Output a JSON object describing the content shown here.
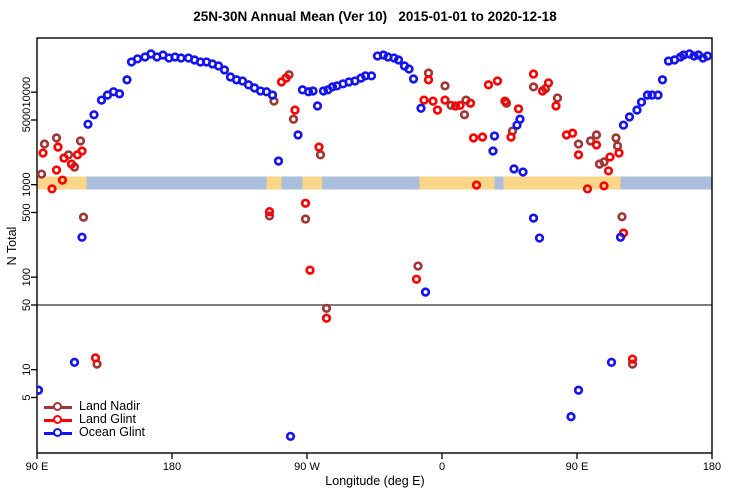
{
  "title": "25N-30N Annual Mean (Ver 10)   2015-01-01 to 2020-12-18",
  "chart_data": {
    "type": "scatter",
    "title": "25N-30N Annual Mean (Ver 10)   2015-01-01 to 2020-12-18",
    "xlabel": "Longitude (deg E)",
    "ylabel": "N Total",
    "x_axis": {
      "note": "longitude axis wraps: 90E to 180 to 90W to 0 to 90E to 180, stored unwrapped 90..540 deg",
      "range": [
        90,
        540
      ],
      "ticks": [
        {
          "lon": 90,
          "label": "90 E"
        },
        {
          "lon": 180,
          "label": "180"
        },
        {
          "lon": 270,
          "label": "90 W"
        },
        {
          "lon": 360,
          "label": "0"
        },
        {
          "lon": 450,
          "label": "90 E"
        },
        {
          "lon": 540,
          "label": "180"
        }
      ]
    },
    "y_axis": {
      "scale": "log",
      "range": [
        1,
        40000
      ],
      "ticks": [
        10000,
        5000,
        1000,
        500,
        100,
        50,
        10,
        5
      ]
    },
    "reference_line": {
      "value": 50,
      "color": "#555555"
    },
    "land_ocean_strip": {
      "at_value": 1000,
      "land_color": "#FAD689",
      "ocean_color": "#A9BFDB",
      "segments": [
        {
          "from": 90,
          "to": 123,
          "type": "land"
        },
        {
          "from": 123,
          "to": 243,
          "type": "ocean"
        },
        {
          "from": 243,
          "to": 253,
          "type": "land"
        },
        {
          "from": 253,
          "to": 267,
          "type": "ocean"
        },
        {
          "from": 267,
          "to": 280,
          "type": "land"
        },
        {
          "from": 280,
          "to": 345,
          "type": "ocean"
        },
        {
          "from": 345,
          "to": 395,
          "type": "land"
        },
        {
          "from": 395,
          "to": 401,
          "type": "ocean"
        },
        {
          "from": 401,
          "to": 479,
          "type": "land"
        },
        {
          "from": 479,
          "to": 540,
          "type": "ocean"
        }
      ]
    },
    "legend_position": "bottom-left",
    "series": [
      {
        "name": "Land Nadir",
        "color": "#A03636",
        "points": [
          [
            93,
            1300
          ],
          [
            95,
            2750
          ],
          [
            103,
            3200
          ],
          [
            111,
            2100
          ],
          [
            115,
            1550
          ],
          [
            119,
            2970
          ],
          [
            121,
            445
          ],
          [
            245,
            460
          ],
          [
            248,
            8000
          ],
          [
            258,
            15400
          ],
          [
            261,
            5100
          ],
          [
            269,
            425
          ],
          [
            279,
            2100
          ],
          [
            283,
            46
          ],
          [
            344,
            132
          ],
          [
            351,
            16100
          ],
          [
            362,
            11700
          ],
          [
            366,
            7200
          ],
          [
            375,
            5700
          ],
          [
            376,
            8200
          ],
          [
            403,
            7600
          ],
          [
            407,
            3800
          ],
          [
            421,
            11400
          ],
          [
            429,
            10900
          ],
          [
            437,
            8650
          ],
          [
            451,
            2750
          ],
          [
            459,
            2970
          ],
          [
            463,
            3450
          ],
          [
            465,
            1670
          ],
          [
            468,
            1760
          ],
          [
            476,
            3200
          ],
          [
            477,
            2620
          ],
          [
            480,
            450
          ],
          [
            487,
            11.5
          ],
          [
            130,
            11.5
          ]
        ]
      },
      {
        "name": "Land Glint",
        "color": "#FF0000",
        "points": [
          [
            94,
            2200
          ],
          [
            104,
            2550
          ],
          [
            108,
            1940
          ],
          [
            113,
            1670
          ],
          [
            117,
            2100
          ],
          [
            120,
            2310
          ],
          [
            103,
            1440
          ],
          [
            107,
            1120
          ],
          [
            100,
            900
          ],
          [
            245,
            510
          ],
          [
            253,
            12900
          ],
          [
            256,
            14200
          ],
          [
            262,
            6400
          ],
          [
            269,
            630
          ],
          [
            272,
            119
          ],
          [
            278,
            2550
          ],
          [
            283,
            36
          ],
          [
            343,
            95
          ],
          [
            348,
            8200
          ],
          [
            351,
            13600
          ],
          [
            354,
            8000
          ],
          [
            357,
            6400
          ],
          [
            362,
            8200
          ],
          [
            369,
            7100
          ],
          [
            372,
            7200
          ],
          [
            379,
            7600
          ],
          [
            383,
            990
          ],
          [
            381,
            3200
          ],
          [
            387,
            3270
          ],
          [
            391,
            12000
          ],
          [
            397,
            13200
          ],
          [
            402,
            8000
          ],
          [
            406,
            3270
          ],
          [
            411,
            6600
          ],
          [
            421,
            15700
          ],
          [
            427,
            10300
          ],
          [
            431,
            12600
          ],
          [
            436,
            7100
          ],
          [
            443,
            3450
          ],
          [
            447,
            3600
          ],
          [
            451,
            2100
          ],
          [
            457,
            900
          ],
          [
            463,
            2690
          ],
          [
            468,
            970
          ],
          [
            471,
            1410
          ],
          [
            472,
            1990
          ],
          [
            478,
            2200
          ],
          [
            481,
            300
          ],
          [
            487,
            13
          ],
          [
            129,
            13.4
          ]
        ]
      },
      {
        "name": "Ocean Glint",
        "color": "#1414EE",
        "points": [
          [
            124,
            4500
          ],
          [
            128,
            5700
          ],
          [
            133,
            8200
          ],
          [
            137,
            9300
          ],
          [
            141,
            10100
          ],
          [
            145,
            9600
          ],
          [
            150,
            13600
          ],
          [
            153,
            21200
          ],
          [
            157,
            22900
          ],
          [
            162,
            24000
          ],
          [
            166,
            25900
          ],
          [
            170,
            24000
          ],
          [
            174,
            25200
          ],
          [
            178,
            23400
          ],
          [
            182,
            24000
          ],
          [
            186,
            23400
          ],
          [
            191,
            23400
          ],
          [
            195,
            22300
          ],
          [
            199,
            21200
          ],
          [
            203,
            21200
          ],
          [
            207,
            20200
          ],
          [
            211,
            19200
          ],
          [
            215,
            17400
          ],
          [
            219,
            14600
          ],
          [
            223,
            13600
          ],
          [
            227,
            13200
          ],
          [
            231,
            12000
          ],
          [
            235,
            11100
          ],
          [
            239,
            10300
          ],
          [
            243,
            10100
          ],
          [
            247,
            9300
          ],
          [
            251,
            1800
          ],
          [
            264,
            3450
          ],
          [
            267,
            10600
          ],
          [
            271,
            10100
          ],
          [
            274,
            10300
          ],
          [
            277,
            7100
          ],
          [
            281,
            10300
          ],
          [
            284,
            10600
          ],
          [
            287,
            11400
          ],
          [
            290,
            11700
          ],
          [
            294,
            12300
          ],
          [
            298,
            12900
          ],
          [
            302,
            13200
          ],
          [
            306,
            14200
          ],
          [
            309,
            15000
          ],
          [
            313,
            15000
          ],
          [
            317,
            24600
          ],
          [
            321,
            25200
          ],
          [
            324,
            24000
          ],
          [
            328,
            23400
          ],
          [
            331,
            22300
          ],
          [
            335,
            19200
          ],
          [
            338,
            17800
          ],
          [
            341,
            13900
          ],
          [
            346,
            6700
          ],
          [
            395,
            3360
          ],
          [
            394,
            2310
          ],
          [
            410,
            4400
          ],
          [
            412,
            5100
          ],
          [
            408,
            1480
          ],
          [
            414,
            1370
          ],
          [
            421,
            435
          ],
          [
            425,
            265
          ],
          [
            479,
            270
          ],
          [
            481,
            4400
          ],
          [
            485,
            5400
          ],
          [
            490,
            6400
          ],
          [
            493,
            7800
          ],
          [
            497,
            9300
          ],
          [
            500,
            9300
          ],
          [
            504,
            9300
          ],
          [
            507,
            13600
          ],
          [
            511,
            21700
          ],
          [
            515,
            22300
          ],
          [
            519,
            24000
          ],
          [
            521,
            25200
          ],
          [
            525,
            25900
          ],
          [
            528,
            24600
          ],
          [
            531,
            25200
          ],
          [
            534,
            23400
          ],
          [
            537,
            24600
          ],
          [
            120,
            270
          ],
          [
            115,
            12
          ],
          [
            91,
            6
          ],
          [
            259,
            1.9
          ],
          [
            349,
            69
          ],
          [
            446,
            3.1
          ],
          [
            451,
            6
          ],
          [
            473,
            12
          ]
        ]
      }
    ]
  }
}
